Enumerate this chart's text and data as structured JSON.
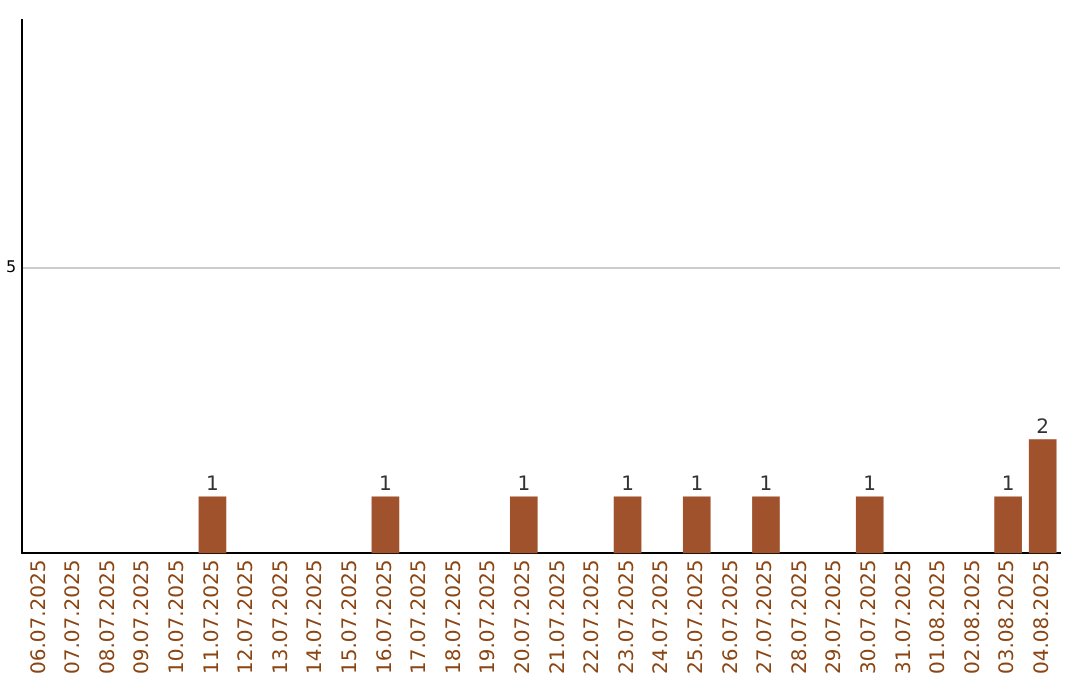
{
  "chart_data": {
    "type": "bar",
    "categories": [
      "06.07.2025",
      "07.07.2025",
      "08.07.2025",
      "09.07.2025",
      "10.07.2025",
      "11.07.2025",
      "12.07.2025",
      "13.07.2025",
      "14.07.2025",
      "15.07.2025",
      "16.07.2025",
      "17.07.2025",
      "18.07.2025",
      "19.07.2025",
      "20.07.2025",
      "21.07.2025",
      "22.07.2025",
      "23.07.2025",
      "24.07.2025",
      "25.07.2025",
      "26.07.2025",
      "27.07.2025",
      "28.07.2025",
      "29.07.2025",
      "30.07.2025",
      "31.07.2025",
      "01.08.2025",
      "02.08.2025",
      "03.08.2025",
      "04.08.2025"
    ],
    "values": [
      0,
      0,
      0,
      0,
      0,
      1,
      0,
      0,
      0,
      0,
      1,
      0,
      0,
      0,
      1,
      0,
      0,
      1,
      0,
      1,
      0,
      1,
      0,
      0,
      1,
      0,
      0,
      0,
      1,
      2
    ],
    "value_labels": [
      null,
      null,
      null,
      null,
      null,
      "1",
      null,
      null,
      null,
      null,
      "1",
      null,
      null,
      null,
      "1",
      null,
      null,
      "1",
      null,
      "1",
      null,
      "1",
      null,
      null,
      "1",
      null,
      null,
      null,
      "1",
      "2"
    ],
    "color": "#a0522d",
    "ylim": [
      0,
      9.35
    ],
    "yticks": [
      5
    ],
    "grid": "y"
  }
}
